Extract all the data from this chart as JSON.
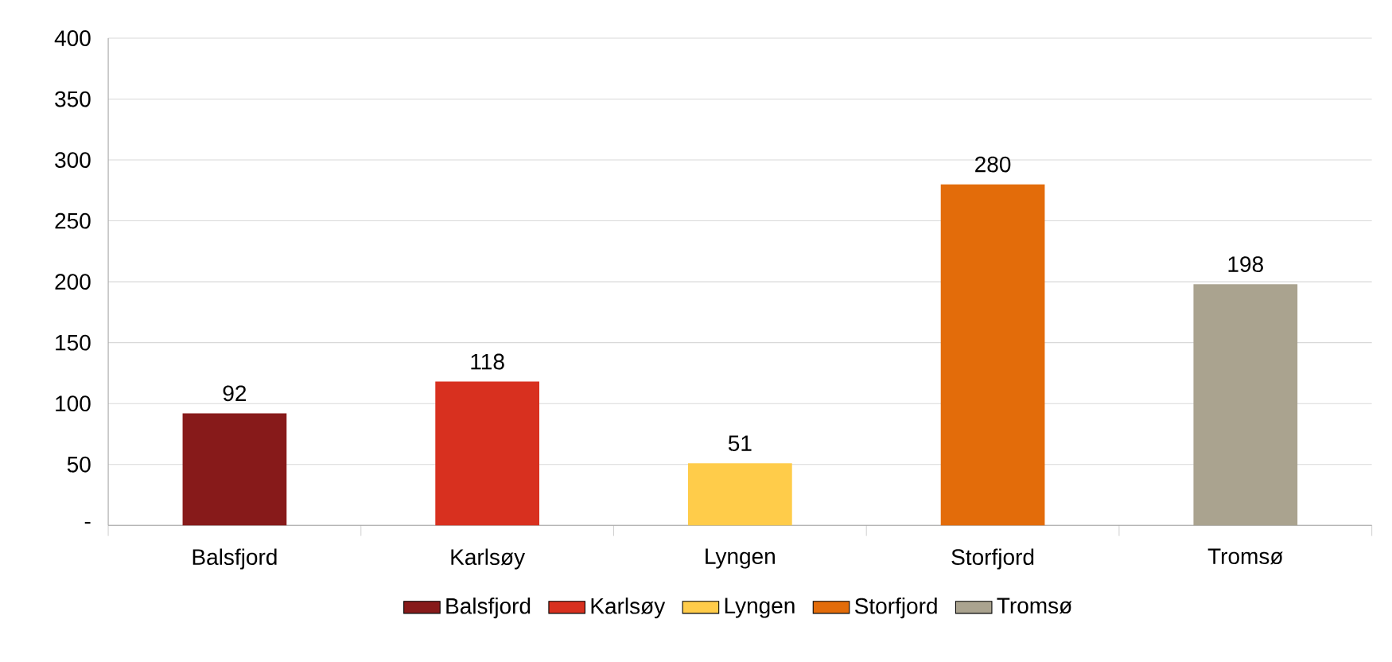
{
  "chart_data": {
    "type": "bar",
    "categories": [
      "Balsfjord",
      "Karlsøy",
      "Lyngen",
      "Storfjord",
      "Tromsø"
    ],
    "series": [
      {
        "name": "Balsfjord",
        "color": "#871a1a",
        "values": [
          92,
          null,
          null,
          null,
          null
        ]
      },
      {
        "name": "Karlsøy",
        "color": "#d8301f",
        "values": [
          null,
          118,
          null,
          null,
          null
        ]
      },
      {
        "name": "Lyngen",
        "color": "#ffcc4a",
        "values": [
          null,
          null,
          51,
          null,
          null
        ]
      },
      {
        "name": "Storfjord",
        "color": "#e36c0a",
        "values": [
          null,
          null,
          null,
          280,
          null
        ]
      },
      {
        "name": "Tromsø",
        "color": "#aaa38f",
        "values": [
          null,
          null,
          null,
          null,
          198
        ]
      }
    ],
    "ylim": [
      0,
      400
    ],
    "yticks": [
      {
        "value": 0,
        "label": "-"
      },
      50,
      100,
      150,
      200,
      250,
      300,
      350,
      400
    ],
    "grid": "y",
    "data_labels": true,
    "legend": "bottom"
  }
}
